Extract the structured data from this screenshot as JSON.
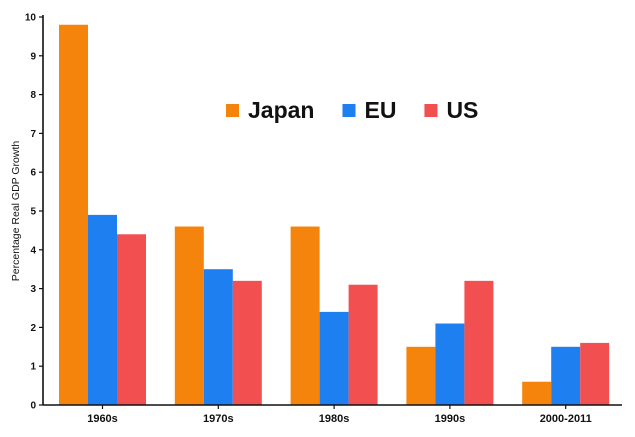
{
  "chart_data": {
    "type": "bar",
    "title": "",
    "xlabel": "",
    "ylabel": "Percentage Real GDP Growth",
    "ylim": [
      0,
      10
    ],
    "yticks": [
      0,
      1,
      2,
      3,
      4,
      5,
      6,
      7,
      8,
      9,
      10
    ],
    "categories": [
      "1960s",
      "1970s",
      "1980s",
      "1990s",
      "2000-2011"
    ],
    "series": [
      {
        "name": "Japan",
        "color": "#f5840c",
        "values": [
          9.8,
          4.6,
          4.6,
          1.5,
          0.6
        ]
      },
      {
        "name": "EU",
        "color": "#1e7ff0",
        "values": [
          4.9,
          3.5,
          2.4,
          2.1,
          1.5
        ]
      },
      {
        "name": "US",
        "color": "#f24f50",
        "values": [
          4.4,
          3.2,
          3.1,
          3.2,
          1.6
        ]
      }
    ],
    "legend_position": "top-center",
    "grid": false
  }
}
